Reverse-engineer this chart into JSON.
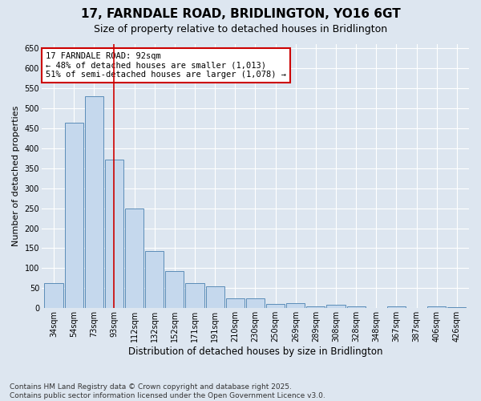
{
  "title_line1": "17, FARNDALE ROAD, BRIDLINGTON, YO16 6GT",
  "title_line2": "Size of property relative to detached houses in Bridlington",
  "xlabel": "Distribution of detached houses by size in Bridlington",
  "ylabel": "Number of detached properties",
  "categories": [
    "34sqm",
    "54sqm",
    "73sqm",
    "93sqm",
    "112sqm",
    "132sqm",
    "152sqm",
    "171sqm",
    "191sqm",
    "210sqm",
    "230sqm",
    "250sqm",
    "269sqm",
    "289sqm",
    "308sqm",
    "328sqm",
    "348sqm",
    "367sqm",
    "387sqm",
    "406sqm",
    "426sqm"
  ],
  "values": [
    62,
    463,
    530,
    372,
    250,
    142,
    93,
    63,
    55,
    25,
    25,
    10,
    12,
    5,
    8,
    4,
    0,
    4,
    0,
    5,
    3
  ],
  "bar_color": "#c5d8ed",
  "bar_edge_color": "#5b8db8",
  "vline_x": 3,
  "vline_color": "#cc0000",
  "annotation_text": "17 FARNDALE ROAD: 92sqm\n← 48% of detached houses are smaller (1,013)\n51% of semi-detached houses are larger (1,078) →",
  "annotation_box_color": "#ffffff",
  "annotation_box_edge": "#cc0000",
  "background_color": "#dde6f0",
  "plot_bg_color": "#dde6f0",
  "ylim": [
    0,
    660
  ],
  "yticks": [
    0,
    50,
    100,
    150,
    200,
    250,
    300,
    350,
    400,
    450,
    500,
    550,
    600,
    650
  ],
  "footer_line1": "Contains HM Land Registry data © Crown copyright and database right 2025.",
  "footer_line2": "Contains public sector information licensed under the Open Government Licence v3.0.",
  "title_fontsize": 11,
  "subtitle_fontsize": 9,
  "xlabel_fontsize": 8.5,
  "ylabel_fontsize": 8,
  "tick_fontsize": 7,
  "annotation_fontsize": 7.5,
  "footer_fontsize": 6.5
}
